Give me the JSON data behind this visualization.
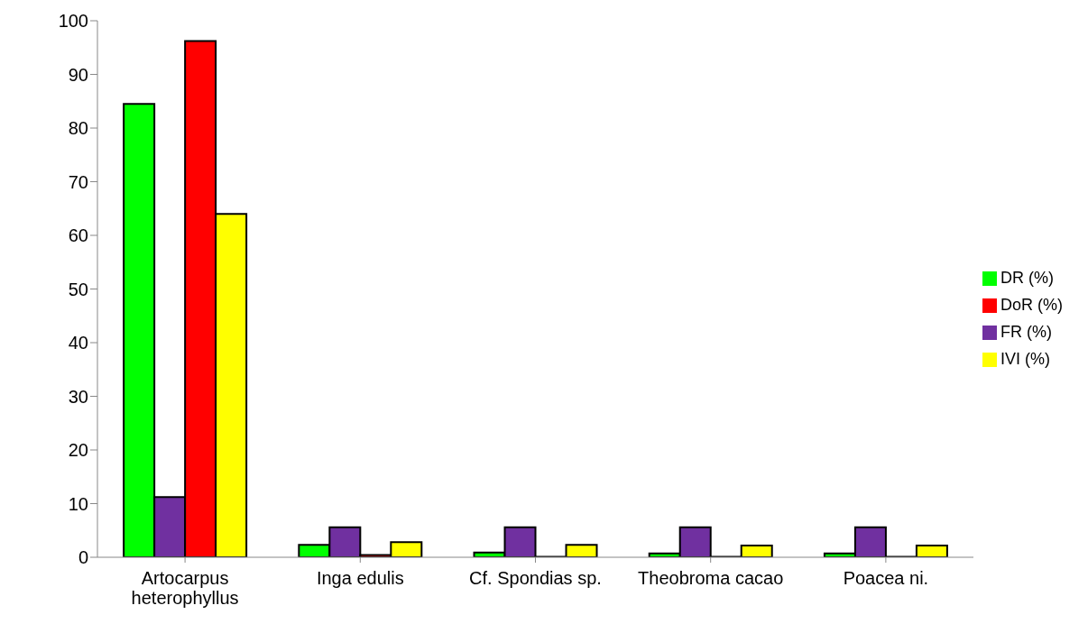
{
  "chart_data": {
    "type": "bar",
    "categories": [
      "Artocarpus heterophyllus",
      "Inga edulis",
      "Cf. Spondias sp.",
      "Theobroma cacao",
      "Poacea ni."
    ],
    "series": [
      {
        "name": "DR (%)",
        "color": "#00ff00",
        "values": [
          84.5,
          2.3,
          0.9,
          0.7,
          0.7
        ]
      },
      {
        "name": "FR (%)",
        "color": "#7030a0",
        "values": [
          11.2,
          5.6,
          5.6,
          5.6,
          5.6
        ]
      },
      {
        "name": "DoR (%)",
        "color": "#ff0000",
        "values": [
          96.2,
          0.4,
          0.1,
          0.1,
          0.1
        ]
      },
      {
        "name": "IVI (%)",
        "color": "#ffff00",
        "values": [
          64,
          2.8,
          2.3,
          2.2,
          2.2
        ]
      }
    ],
    "ylim": [
      0,
      100
    ],
    "yticks": [
      0,
      10,
      20,
      30,
      40,
      50,
      60,
      70,
      80,
      90,
      100
    ],
    "grid": false,
    "legend": "right"
  }
}
